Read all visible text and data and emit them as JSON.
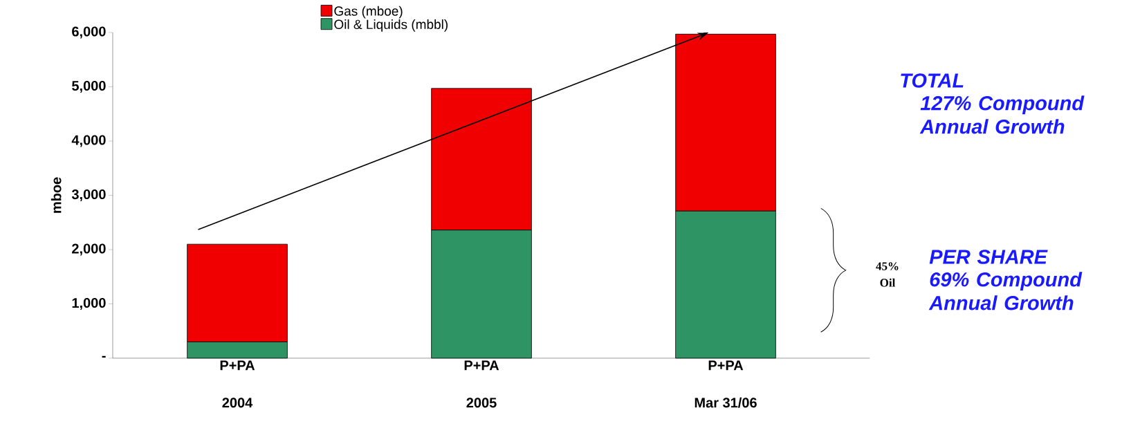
{
  "chart_data": {
    "type": "bar",
    "stacked": true,
    "categories": [
      "2004",
      "2005",
      "Mar 31/06"
    ],
    "series": [
      {
        "name": "Oil & Liquids (mbbl)",
        "color": "#2f9463",
        "values": [
          300,
          2360,
          2710
        ]
      },
      {
        "name": "Gas (mboe)",
        "color": "#f00000",
        "values": [
          1800,
          2610,
          3260
        ]
      }
    ],
    "ylabel": "mboe",
    "ylim": [
      0,
      6000
    ],
    "yticks": [
      {
        "value": 0,
        "label": "-"
      },
      {
        "value": 1000,
        "label": "1,000"
      },
      {
        "value": 2000,
        "label": "2,000"
      },
      {
        "value": 3000,
        "label": "3,000"
      },
      {
        "value": 4000,
        "label": "4,000"
      },
      {
        "value": 5000,
        "label": "5,000"
      },
      {
        "value": 6000,
        "label": "6,000"
      }
    ],
    "legend": "top",
    "annotations": [
      "P+PA",
      "P+PA",
      "P+PA",
      "45% Oil",
      "TOTAL",
      "127% Compound Annual Growth",
      "PER SHARE",
      "69% Compound Annual Growth"
    ]
  }
}
